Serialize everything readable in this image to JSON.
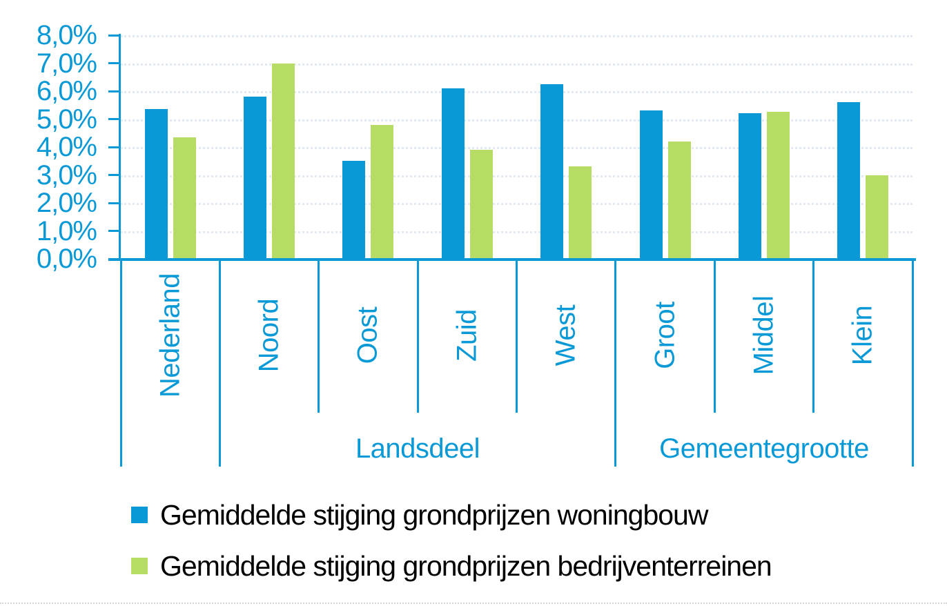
{
  "chart_data": {
    "type": "bar",
    "title": "",
    "categories": [
      "Nederland",
      "Noord",
      "Oost",
      "Zuid",
      "West",
      "Groot",
      "Middel",
      "Klein"
    ],
    "category_groups": [
      {
        "label": "",
        "start": 0,
        "count": 1
      },
      {
        "label": "Landsdeel",
        "start": 1,
        "count": 4
      },
      {
        "label": "Gemeentegrootte",
        "start": 5,
        "count": 3
      }
    ],
    "series": [
      {
        "name": "Gemiddelde stijging grondprijzen woningbouw",
        "color": "#0999d6",
        "values": [
          5.35,
          5.8,
          3.5,
          6.1,
          6.25,
          5.3,
          5.2,
          5.6
        ]
      },
      {
        "name": "Gemiddelde stijging grondprijzen bedrijventerreinen",
        "color": "#b7dc66",
        "values": [
          4.35,
          7.0,
          4.8,
          3.9,
          3.3,
          4.2,
          5.25,
          3.0
        ]
      }
    ],
    "y_axis": {
      "min": 0,
      "max": 8,
      "step": 1,
      "tick_labels": [
        "0,0%",
        "1,0%",
        "2,0%",
        "3,0%",
        "4,0%",
        "5,0%",
        "6,0%",
        "7,0%",
        "8,0%"
      ]
    },
    "ylim": [
      0,
      8
    ],
    "grid": true,
    "legend_position": "bottom",
    "xlabel": "",
    "ylabel": ""
  },
  "colors": {
    "axis": "#0999d6",
    "gridline": "#e2e9f2",
    "legend_text": "#000000",
    "background": "#ffffff"
  }
}
